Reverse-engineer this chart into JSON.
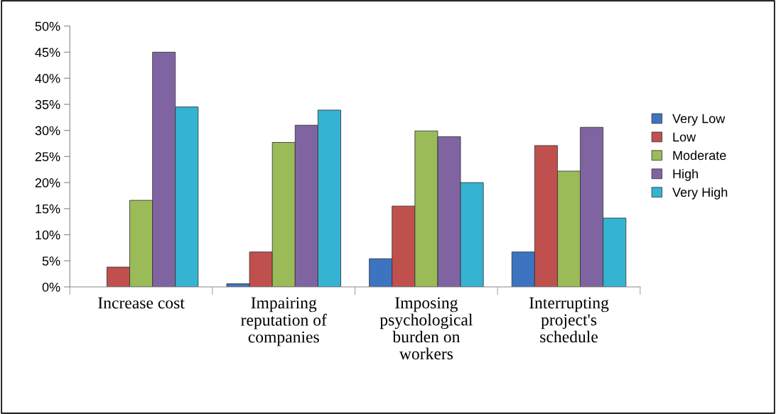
{
  "chart_data": {
    "type": "bar",
    "categories": [
      "Increase cost",
      "Impairing\nreputation of\ncompanies",
      "Imposing\npsychological\nburden on\nworkers",
      "Interrupting\nproject's\nschedule"
    ],
    "series": [
      {
        "name": "Very Low",
        "color": "#3d74c2",
        "values": [
          null,
          0.6,
          5.4,
          6.7
        ]
      },
      {
        "name": "Low",
        "color": "#c0504d",
        "values": [
          3.8,
          6.7,
          15.5,
          27.1
        ]
      },
      {
        "name": "Moderate",
        "color": "#9bbb59",
        "values": [
          16.6,
          27.7,
          29.9,
          22.2
        ]
      },
      {
        "name": "High",
        "color": "#8064a2",
        "values": [
          45.0,
          31.0,
          28.8,
          30.6
        ]
      },
      {
        "name": "Very High",
        "color": "#35b3d3",
        "values": [
          34.5,
          33.9,
          20.0,
          13.2
        ]
      }
    ],
    "ylim": [
      0,
      50
    ],
    "yticks": [
      {
        "value": 0,
        "label": "0%"
      },
      {
        "value": 5,
        "label": "5%"
      },
      {
        "value": 10,
        "label": "10%"
      },
      {
        "value": 15,
        "label": "15%"
      },
      {
        "value": 20,
        "label": "20%"
      },
      {
        "value": 25,
        "label": "25%"
      },
      {
        "value": 30,
        "label": "30%"
      },
      {
        "value": 35,
        "label": "35%"
      },
      {
        "value": 40,
        "label": "40%"
      },
      {
        "value": 45,
        "label": "45%"
      },
      {
        "value": 50,
        "label": "50%"
      }
    ],
    "grid": false,
    "legend": "right"
  }
}
